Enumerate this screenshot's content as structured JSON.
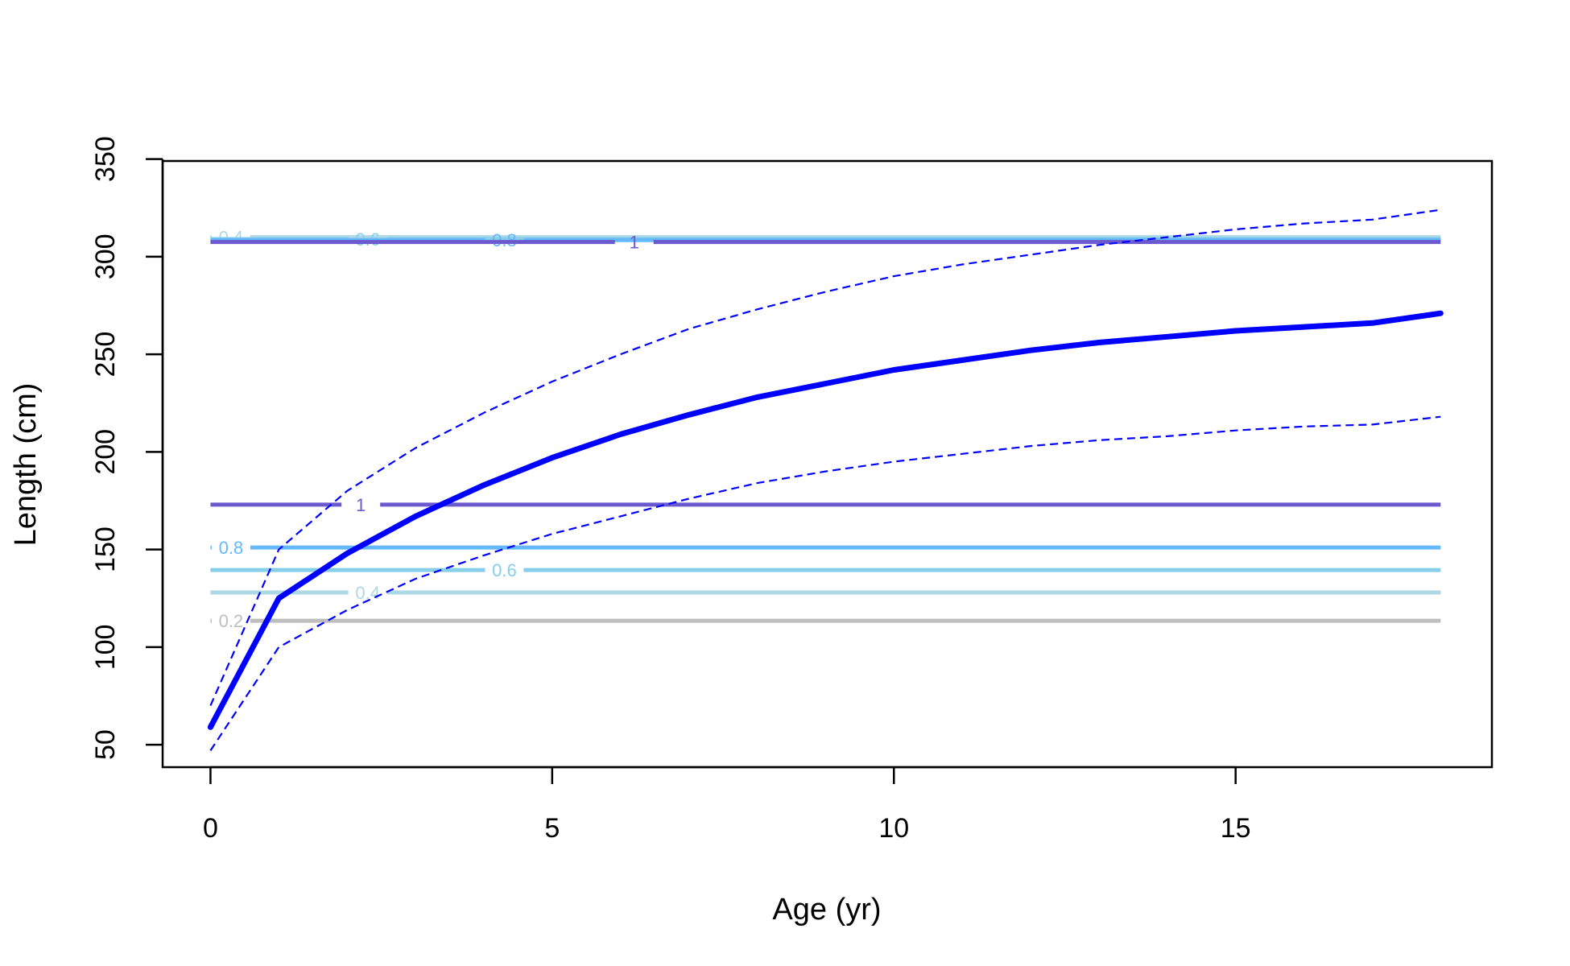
{
  "chart_data": {
    "type": "line",
    "title": "",
    "xlabel": "Age (yr)",
    "ylabel": "Length (cm)",
    "xlim": [
      -0.7,
      18.75
    ],
    "ylim": [
      38.5,
      349
    ],
    "x_ticks": [
      {
        "value": 0,
        "label": "0"
      },
      {
        "value": 5,
        "label": "5"
      },
      {
        "value": 10,
        "label": "10"
      },
      {
        "value": 15,
        "label": "15"
      }
    ],
    "y_ticks": [
      {
        "value": 50,
        "label": "50"
      },
      {
        "value": 100,
        "label": "100"
      },
      {
        "value": 150,
        "label": "150"
      },
      {
        "value": 200,
        "label": "200"
      },
      {
        "value": 250,
        "label": "250"
      },
      {
        "value": 300,
        "label": "300"
      },
      {
        "value": 350,
        "label": "350"
      }
    ],
    "grid": false,
    "series": [
      {
        "style": "solid-thick",
        "color": "#0000ff",
        "x": [
          0,
          1,
          2,
          3,
          4,
          5,
          6,
          7,
          8,
          9,
          10,
          11,
          12,
          13,
          14,
          15,
          16,
          17,
          18
        ],
        "values": [
          59,
          125,
          148,
          167,
          183,
          197,
          209,
          219,
          228,
          235,
          242,
          247,
          252,
          256,
          259,
          262,
          264,
          266,
          271
        ]
      },
      {
        "style": "dashed",
        "color": "#0000ff",
        "x": [
          0,
          1,
          2,
          3,
          4,
          5,
          6,
          7,
          8,
          9,
          10,
          11,
          12,
          13,
          14,
          15,
          16,
          17,
          18
        ],
        "values": [
          70,
          150,
          180,
          202,
          220,
          236,
          250,
          263,
          273,
          282,
          290,
          296,
          301,
          306,
          310,
          314,
          317,
          319,
          324
        ]
      },
      {
        "style": "dashed",
        "color": "#0000ff",
        "x": [
          0,
          1,
          2,
          3,
          4,
          5,
          6,
          7,
          8,
          9,
          10,
          11,
          12,
          13,
          14,
          15,
          16,
          17,
          18
        ],
        "values": [
          47,
          100,
          119,
          135,
          147,
          158,
          167,
          176,
          184,
          190,
          195,
          199,
          203,
          206,
          208,
          211,
          213,
          214,
          218
        ]
      }
    ],
    "reference_lines": [
      {
        "label": "0.2",
        "y": 113.5,
        "x_from": 0,
        "x_to": 18,
        "label_x": 0.3,
        "color": "#bebebe"
      },
      {
        "label": "0.4",
        "y": 128,
        "x_from": 0,
        "x_to": 18,
        "label_x": 2.3,
        "color": "#add8e6"
      },
      {
        "label": "0.6",
        "y": 139.5,
        "x_from": 0,
        "x_to": 18,
        "label_x": 4.3,
        "color": "#87ceeb"
      },
      {
        "label": "0.8",
        "y": 151,
        "x_from": 0,
        "x_to": 18,
        "label_x": 0.3,
        "color": "#63b8ff"
      },
      {
        "label": "1",
        "y": 173,
        "x_from": 0,
        "x_to": 18,
        "label_x": 2.2,
        "color": "#6a5acd"
      },
      {
        "label": "0.4",
        "y": 310,
        "x_from": 0,
        "x_to": 18,
        "label_x": 0.3,
        "color": "#add8e6"
      },
      {
        "label": "0.6",
        "y": 309,
        "x_from": 0,
        "x_to": 18,
        "label_x": 2.3,
        "color": "#87ceeb"
      },
      {
        "label": "0.8",
        "y": 308.5,
        "x_from": 0,
        "x_to": 18,
        "label_x": 4.3,
        "color": "#63b8ff"
      },
      {
        "label": "1",
        "y": 307.5,
        "x_from": 0,
        "x_to": 18,
        "label_x": 6.2,
        "color": "#6a5acd"
      }
    ]
  }
}
